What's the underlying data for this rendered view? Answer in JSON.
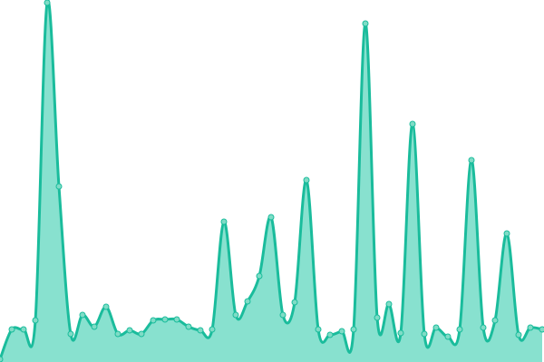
{
  "chart_data": {
    "type": "area",
    "title": "",
    "xlabel": "",
    "ylabel": "",
    "x": [
      0,
      1,
      2,
      3,
      4,
      5,
      6,
      7,
      8,
      9,
      10,
      11,
      12,
      13,
      14,
      15,
      16,
      17,
      18,
      19,
      20,
      21,
      22,
      23,
      24,
      25,
      26,
      27,
      28,
      29,
      30,
      31,
      32,
      33,
      34,
      35,
      36,
      37,
      38,
      39,
      40,
      41,
      42,
      43,
      44,
      45,
      46
    ],
    "values": [
      3,
      36,
      36,
      46,
      397,
      194,
      31,
      52,
      39,
      61,
      31,
      35,
      31,
      46,
      47,
      47,
      39,
      35,
      36,
      155,
      52,
      67,
      95,
      160,
      52,
      66,
      201,
      36,
      30,
      34,
      36,
      374,
      49,
      64,
      32,
      263,
      31,
      38,
      28,
      36,
      223,
      38,
      46,
      142,
      30,
      38,
      36
    ],
    "ylim": [
      0,
      400
    ],
    "grid": false,
    "axes_visible": false,
    "smooth": true,
    "markers": true,
    "colors": {
      "line": "#1abc9c",
      "fill": "#88e1cf",
      "marker_fill": "#7fdcc6"
    }
  }
}
